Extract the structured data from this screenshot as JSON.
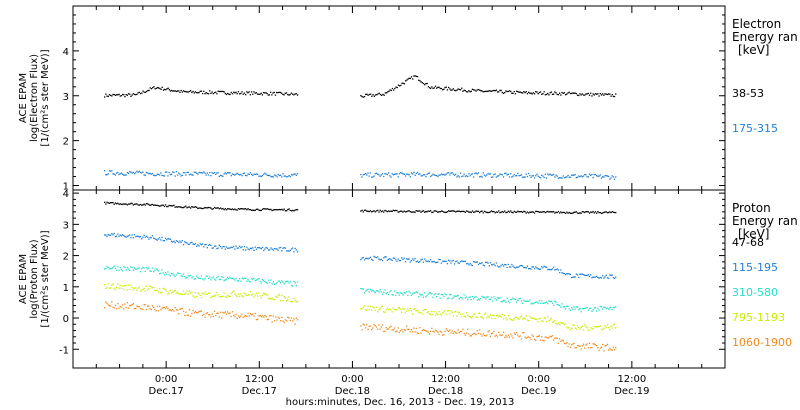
{
  "chart_data": {
    "type": "scatter",
    "xlabel": "hours:minutes, Dec. 16, 2013 - Dec. 19, 2013",
    "x_ticks": [
      {
        "time": "0:00",
        "date": "Dec.17"
      },
      {
        "time": "12:00",
        "date": "Dec.17"
      },
      {
        "time": "0:00",
        "date": "Dec.18"
      },
      {
        "time": "12:00",
        "date": "Dec.18"
      },
      {
        "time": "0:00",
        "date": "Dec.19"
      },
      {
        "time": "12:00",
        "date": "Dec.19"
      }
    ],
    "panels": [
      {
        "ylabel_line1": "ACE EPAM",
        "ylabel_line2": "log(Electron Flux)",
        "ylabel_line3": "[1/(cm²s ster MeV)]",
        "ylim": [
          0.9,
          5.0
        ],
        "y_ticks": [
          "1",
          "2",
          "3",
          "4"
        ],
        "side_title": [
          "Electron",
          "Energy ran",
          "[keV]"
        ],
        "series": [
          {
            "name": "38-53",
            "color": "#000000",
            "points": [
              [
                -8,
                3.02
              ],
              [
                -4,
                3.03
              ],
              [
                -1.5,
                3.2
              ],
              [
                2,
                3.1
              ],
              [
                8,
                3.08
              ],
              [
                14,
                3.06
              ],
              [
                17,
                3.04
              ],
              [
                25,
                3.0
              ],
              [
                28,
                3.05
              ],
              [
                32,
                3.45
              ],
              [
                34,
                3.2
              ],
              [
                40,
                3.12
              ],
              [
                46,
                3.08
              ],
              [
                52,
                3.06
              ],
              [
                58,
                3.02
              ]
            ]
          },
          {
            "name": "175-315",
            "color": "#1f7fd6",
            "points": [
              [
                -8,
                1.3
              ],
              [
                -2,
                1.28
              ],
              [
                4,
                1.27
              ],
              [
                10,
                1.26
              ],
              [
                17,
                1.24
              ],
              [
                25,
                1.24
              ],
              [
                32,
                1.26
              ],
              [
                40,
                1.25
              ],
              [
                48,
                1.23
              ],
              [
                54,
                1.22
              ],
              [
                58,
                1.2
              ]
            ]
          }
        ]
      },
      {
        "ylabel_line1": "ACE EPAM",
        "ylabel_line2": "log(Proton Flux)",
        "ylabel_line3": "[1/(cm²s ster MeV)]",
        "ylim": [
          -1.6,
          4.1
        ],
        "y_ticks": [
          "-1",
          "0",
          "1",
          "2",
          "3",
          "4"
        ],
        "side_title": [
          "Proton",
          "Energy ran",
          "[keV]"
        ],
        "series": [
          {
            "name": "47-68",
            "color": "#000000",
            "points": [
              [
                -8,
                3.7
              ],
              [
                -2,
                3.65
              ],
              [
                4,
                3.55
              ],
              [
                10,
                3.5
              ],
              [
                17,
                3.48
              ],
              [
                25,
                3.45
              ],
              [
                34,
                3.43
              ],
              [
                44,
                3.42
              ],
              [
                52,
                3.4
              ],
              [
                58,
                3.4
              ]
            ]
          },
          {
            "name": "115-195",
            "color": "#1f7fd6",
            "points": [
              [
                -8,
                2.7
              ],
              [
                -2,
                2.6
              ],
              [
                4,
                2.35
              ],
              [
                10,
                2.25
              ],
              [
                17,
                2.2
              ],
              [
                25,
                1.95
              ],
              [
                34,
                1.85
              ],
              [
                44,
                1.7
              ],
              [
                50,
                1.6
              ],
              [
                52,
                1.38
              ],
              [
                58,
                1.33
              ]
            ]
          },
          {
            "name": "310-580",
            "color": "#22e0c8",
            "points": [
              [
                -8,
                1.65
              ],
              [
                -2,
                1.55
              ],
              [
                4,
                1.3
              ],
              [
                10,
                1.25
              ],
              [
                17,
                1.1
              ],
              [
                25,
                0.9
              ],
              [
                34,
                0.75
              ],
              [
                44,
                0.6
              ],
              [
                50,
                0.5
              ],
              [
                52,
                0.3
              ],
              [
                58,
                0.32
              ]
            ]
          },
          {
            "name": "795-1193",
            "color": "#c8ee00",
            "points": [
              [
                -8,
                1.05
              ],
              [
                -2,
                0.95
              ],
              [
                4,
                0.75
              ],
              [
                10,
                0.8
              ],
              [
                17,
                0.6
              ],
              [
                25,
                0.35
              ],
              [
                34,
                0.2
              ],
              [
                44,
                0.05
              ],
              [
                50,
                -0.05
              ],
              [
                52,
                -0.3
              ],
              [
                58,
                -0.25
              ]
            ]
          },
          {
            "name": "1060-1900",
            "color": "#f08a1c",
            "points": [
              [
                -8,
                0.45
              ],
              [
                -2,
                0.35
              ],
              [
                4,
                0.15
              ],
              [
                10,
                0.1
              ],
              [
                17,
                -0.1
              ],
              [
                25,
                -0.25
              ],
              [
                34,
                -0.4
              ],
              [
                44,
                -0.5
              ],
              [
                50,
                -0.65
              ],
              [
                52,
                -0.85
              ],
              [
                58,
                -0.95
              ]
            ]
          }
        ]
      }
    ]
  }
}
